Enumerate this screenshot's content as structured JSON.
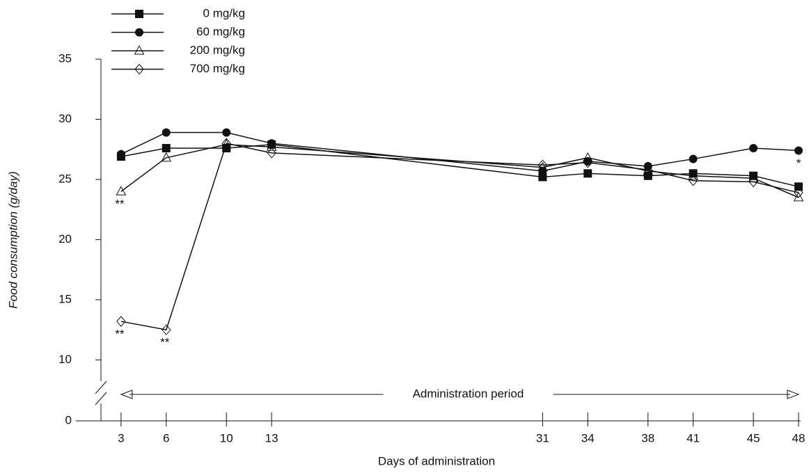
{
  "chart_data": {
    "type": "line",
    "x_label": "Days of administration",
    "y_label": "Food consumption (g/day)",
    "x": [
      3,
      6,
      10,
      13,
      31,
      34,
      38,
      41,
      45,
      48
    ],
    "xlim": [
      0,
      48
    ],
    "xticks": [
      3,
      6,
      10,
      13,
      31,
      34,
      38,
      41,
      45,
      48
    ],
    "ylim": [
      8,
      35
    ],
    "yticks": [
      0,
      10,
      15,
      20,
      25,
      30,
      35
    ],
    "y_break": true,
    "legend": "top-left",
    "series": [
      {
        "name": "0 mg/kg",
        "color": "#111111",
        "marker": "square",
        "values": [
          26.9,
          27.6,
          27.6,
          27.9,
          25.2,
          25.5,
          25.3,
          25.5,
          25.3,
          24.4
        ]
      },
      {
        "name": "60 mg/kg",
        "color": "#111111",
        "marker": "circle",
        "values": [
          27.1,
          28.9,
          28.9,
          28.0,
          25.7,
          26.5,
          26.1,
          26.7,
          27.6,
          27.4
        ]
      },
      {
        "name": "200 mg/kg",
        "color": "#111111",
        "marker": "triangle",
        "values": [
          24.0,
          26.8,
          27.9,
          27.7,
          26.0,
          26.8,
          25.7,
          25.3,
          25.1,
          23.5
        ]
      },
      {
        "name": "700 mg/kg",
        "color": "#111111",
        "marker": "diamond",
        "values": [
          13.2,
          12.5,
          28.0,
          27.2,
          26.2,
          26.4,
          25.8,
          24.9,
          24.8,
          23.9
        ]
      }
    ],
    "annotations": [
      {
        "text": "**",
        "series": 2,
        "index": 0
      },
      {
        "text": "**",
        "series": 3,
        "index": 0
      },
      {
        "text": "**",
        "series": 3,
        "index": 1
      },
      {
        "text": "*",
        "series": 1,
        "index": 9
      }
    ],
    "period_label": "Administration period"
  }
}
